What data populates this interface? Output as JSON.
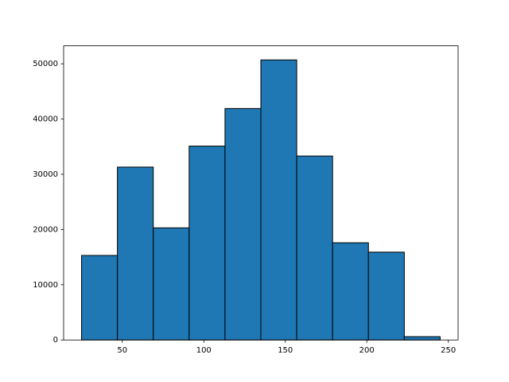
{
  "chart_data": {
    "type": "histogram",
    "bins": [
      25,
      47,
      69,
      91,
      113,
      135,
      157,
      179,
      201,
      223,
      245
    ],
    "values": [
      15300,
      31300,
      20300,
      35100,
      41900,
      50700,
      33300,
      17600,
      15900,
      600
    ],
    "color": "#1f77b4",
    "edgecolor": "#000000",
    "xlim": [
      14,
      256
    ],
    "xticks": [
      50,
      100,
      150,
      200,
      250
    ],
    "ylim": [
      0,
      53250
    ],
    "yticks": [
      0,
      10000,
      20000,
      30000,
      40000,
      50000
    ],
    "grid": false
  }
}
